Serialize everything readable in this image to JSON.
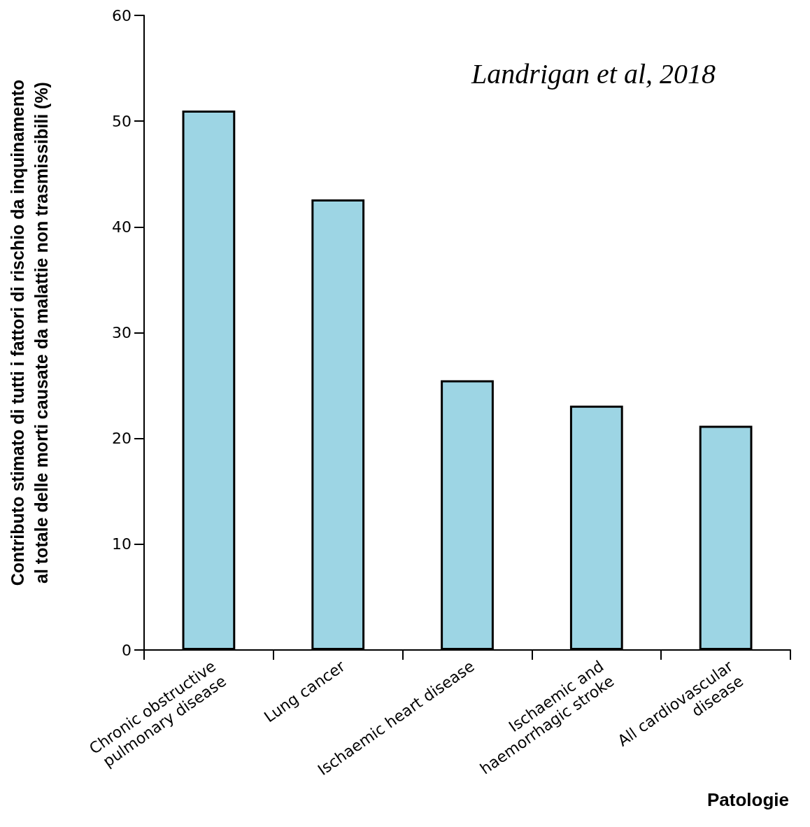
{
  "chart_data": {
    "type": "bar",
    "categories": [
      "Chronic obstructive\npulmonary disease",
      "Lung cancer",
      "Ischaemic heart disease",
      "Ischaemic and\nhaemorrhagic stroke",
      "All cardiovascular\ndisease"
    ],
    "values": [
      51.0,
      42.6,
      25.5,
      23.1,
      21.2
    ],
    "color": "#9dd5e4",
    "ylim": [
      0,
      60
    ],
    "yticks": [
      0,
      10,
      20,
      30,
      40,
      50,
      60
    ],
    "ylabel": "Contributo stimato di tutti i fattori di rischio da inquinamento\nal totale delle morti causate da malattie non trasmissibili (%)",
    "xlabel": "Patologie",
    "annotations": [
      "Landrigan et al, 2018"
    ],
    "grid": false
  }
}
